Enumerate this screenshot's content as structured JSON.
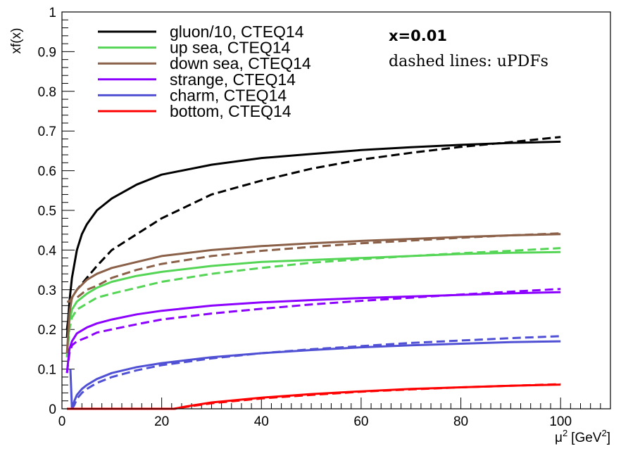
{
  "chart_data": {
    "type": "line",
    "title": "",
    "xlabel": "μ² [GeV²]",
    "xlabel_base": "μ",
    "xlabel_sup": "2",
    "xlabel_unit": "[GeV",
    "xlabel_unit_sup": "2",
    "xlabel_unit_close": "]",
    "ylabel": "xf(x)",
    "xlim": [
      0,
      110
    ],
    "ylim": [
      0,
      1
    ],
    "xticks": [
      0,
      20,
      40,
      60,
      80,
      100
    ],
    "xtick_labels": [
      "0",
      "20",
      "40",
      "60",
      "80",
      "100"
    ],
    "yticks": [
      0,
      0.1,
      0.2,
      0.3,
      0.4,
      0.5,
      0.6,
      0.7,
      0.8,
      0.9,
      1
    ],
    "ytick_labels": [
      "0",
      "0.1",
      "0.2",
      "0.3",
      "0.4",
      "0.5",
      "0.6",
      "0.7",
      "0.8",
      "0.9",
      "1"
    ],
    "grid": false,
    "legend_position": "top-left",
    "annotations": [
      "x=0.01",
      "dashed lines:  uPDFs"
    ],
    "series": [
      {
        "name": "gluon/10, CTEQ14",
        "color": "#000000",
        "style": "solid",
        "x": [
          1,
          1.5,
          2,
          3,
          4,
          5,
          7,
          10,
          15,
          20,
          30,
          40,
          50,
          60,
          70,
          80,
          90,
          100
        ],
        "y": [
          0.18,
          0.27,
          0.33,
          0.4,
          0.44,
          0.465,
          0.5,
          0.53,
          0.565,
          0.59,
          0.615,
          0.632,
          0.642,
          0.652,
          0.659,
          0.665,
          0.67,
          0.673
        ]
      },
      {
        "name": "gluon/10, uPDF",
        "color": "#000000",
        "style": "dashed",
        "x": [
          1,
          1.5,
          2,
          3,
          5,
          7,
          10,
          15,
          20,
          25,
          30,
          40,
          50,
          60,
          70,
          80,
          90,
          100
        ],
        "y": [
          0.2,
          0.25,
          0.28,
          0.3,
          0.33,
          0.36,
          0.4,
          0.44,
          0.48,
          0.51,
          0.54,
          0.575,
          0.605,
          0.628,
          0.645,
          0.66,
          0.672,
          0.685
        ]
      },
      {
        "name": "up sea, CTEQ14",
        "color": "#55d555",
        "style": "solid",
        "x": [
          1,
          1.5,
          2,
          3,
          5,
          7,
          10,
          15,
          20,
          30,
          40,
          50,
          60,
          70,
          80,
          90,
          100
        ],
        "y": [
          0.13,
          0.22,
          0.25,
          0.27,
          0.29,
          0.305,
          0.32,
          0.335,
          0.345,
          0.36,
          0.37,
          0.375,
          0.38,
          0.385,
          0.39,
          0.393,
          0.395
        ]
      },
      {
        "name": "up sea, uPDF",
        "color": "#55d555",
        "style": "dashed",
        "x": [
          1,
          1.5,
          2,
          3,
          5,
          7,
          10,
          15,
          20,
          30,
          40,
          50,
          60,
          70,
          80,
          90,
          100
        ],
        "y": [
          0.13,
          0.2,
          0.23,
          0.25,
          0.265,
          0.28,
          0.29,
          0.305,
          0.32,
          0.34,
          0.355,
          0.368,
          0.377,
          0.385,
          0.392,
          0.398,
          0.405
        ]
      },
      {
        "name": "down sea, CTEQ14",
        "color": "#8b6048",
        "style": "solid",
        "x": [
          1,
          1.5,
          2,
          3,
          5,
          7,
          10,
          15,
          20,
          30,
          40,
          50,
          60,
          70,
          80,
          90,
          100
        ],
        "y": [
          0.14,
          0.24,
          0.28,
          0.3,
          0.325,
          0.34,
          0.355,
          0.37,
          0.385,
          0.4,
          0.41,
          0.417,
          0.423,
          0.428,
          0.433,
          0.437,
          0.44
        ]
      },
      {
        "name": "down sea, uPDF",
        "color": "#8b6048",
        "style": "dashed",
        "x": [
          1,
          1.5,
          2,
          3,
          5,
          7,
          10,
          15,
          20,
          30,
          40,
          50,
          60,
          70,
          80,
          90,
          100
        ],
        "y": [
          0.27,
          0.27,
          0.28,
          0.28,
          0.3,
          0.31,
          0.33,
          0.35,
          0.365,
          0.385,
          0.398,
          0.408,
          0.417,
          0.424,
          0.431,
          0.437,
          0.442
        ]
      },
      {
        "name": "strange, CTEQ14",
        "color": "#8b00ff",
        "style": "solid",
        "x": [
          1,
          1.5,
          2,
          3,
          5,
          7,
          10,
          15,
          20,
          30,
          40,
          50,
          60,
          70,
          80,
          90,
          100
        ],
        "y": [
          0.09,
          0.15,
          0.17,
          0.19,
          0.205,
          0.215,
          0.225,
          0.238,
          0.247,
          0.26,
          0.268,
          0.274,
          0.279,
          0.283,
          0.287,
          0.291,
          0.294
        ]
      },
      {
        "name": "strange, uPDF",
        "color": "#8b00ff",
        "style": "dashed",
        "x": [
          1,
          1.5,
          2,
          3,
          5,
          7,
          10,
          15,
          20,
          30,
          40,
          50,
          60,
          70,
          80,
          90,
          100
        ],
        "y": [
          0.09,
          0.14,
          0.16,
          0.17,
          0.18,
          0.192,
          0.2,
          0.213,
          0.225,
          0.24,
          0.252,
          0.263,
          0.272,
          0.28,
          0.288,
          0.295,
          0.302
        ]
      },
      {
        "name": "charm, CTEQ14",
        "color": "#5050d5",
        "style": "solid",
        "x": [
          1.7,
          2,
          2.5,
          3,
          4,
          5,
          7,
          10,
          15,
          20,
          30,
          40,
          50,
          60,
          70,
          80,
          90,
          100
        ],
        "y": [
          0.1,
          0.0,
          0.02,
          0.035,
          0.05,
          0.06,
          0.075,
          0.09,
          0.105,
          0.115,
          0.13,
          0.14,
          0.148,
          0.155,
          0.16,
          0.164,
          0.168,
          0.17
        ]
      },
      {
        "name": "charm, uPDF",
        "color": "#5050d5",
        "style": "dashed",
        "x": [
          2,
          2.5,
          3,
          4,
          5,
          7,
          10,
          15,
          20,
          30,
          40,
          50,
          60,
          70,
          80,
          90,
          100
        ],
        "y": [
          0.0,
          0.01,
          0.025,
          0.04,
          0.05,
          0.065,
          0.08,
          0.097,
          0.11,
          0.127,
          0.14,
          0.15,
          0.158,
          0.166,
          0.172,
          0.178,
          0.183
        ]
      },
      {
        "name": "bottom, CTEQ14",
        "color": "#ff0000",
        "style": "solid",
        "x": [
          1,
          10,
          20,
          22.5,
          25,
          30,
          40,
          50,
          60,
          70,
          80,
          90,
          100
        ],
        "y": [
          0,
          0,
          0,
          0,
          0.006,
          0.016,
          0.028,
          0.037,
          0.044,
          0.05,
          0.054,
          0.058,
          0.061
        ]
      },
      {
        "name": "bottom, uPDF",
        "color": "#ff0000",
        "style": "dashed",
        "x": [
          1,
          10,
          20,
          22.5,
          25,
          30,
          40,
          50,
          60,
          70,
          80,
          90,
          100
        ],
        "y": [
          0,
          0,
          0,
          0,
          0.005,
          0.014,
          0.026,
          0.035,
          0.043,
          0.049,
          0.054,
          0.058,
          0.062
        ]
      }
    ],
    "legend": [
      {
        "label": "gluon/10, CTEQ14",
        "color": "#000000"
      },
      {
        "label": "up sea, CTEQ14",
        "color": "#55d555"
      },
      {
        "label": "down sea, CTEQ14",
        "color": "#8b6048"
      },
      {
        "label": "strange, CTEQ14",
        "color": "#8b00ff"
      },
      {
        "label": "charm, CTEQ14",
        "color": "#5050d5"
      },
      {
        "label": "bottom, CTEQ14",
        "color": "#ff0000"
      }
    ]
  }
}
